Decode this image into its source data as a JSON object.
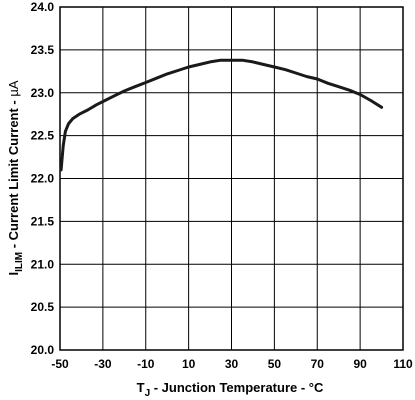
{
  "chart_data": {
    "type": "line",
    "title": "",
    "xlabel": {
      "main": "T",
      "sub": "J",
      "rest": " - Junction Temperature - °C"
    },
    "ylabel": {
      "main": "I",
      "sub": "ILIM",
      "rest": " - Current Limit Current - ",
      "unit": "µA"
    },
    "xlim": [
      -50,
      110
    ],
    "ylim": [
      20.0,
      24.0
    ],
    "xticks": [
      "-50",
      "-30",
      "-10",
      "10",
      "30",
      "50",
      "70",
      "90",
      "110"
    ],
    "yticks": [
      "20.0",
      "20.5",
      "21.0",
      "21.5",
      "22.0",
      "22.5",
      "23.0",
      "23.5",
      "24.0"
    ],
    "grid": true,
    "series": [
      {
        "x": [
          -49.5,
          -48.5,
          -47.5,
          -46,
          -44,
          -41,
          -37,
          -33,
          -29,
          -25,
          -20,
          -15,
          -10,
          -5,
          0,
          5,
          10,
          15,
          20,
          25,
          30,
          35,
          40,
          45,
          50,
          55,
          60,
          65,
          70,
          75,
          80,
          85,
          90,
          95,
          100
        ],
        "y": [
          22.1,
          22.38,
          22.55,
          22.64,
          22.7,
          22.75,
          22.8,
          22.86,
          22.91,
          22.96,
          23.02,
          23.07,
          23.12,
          23.17,
          23.22,
          23.26,
          23.3,
          23.33,
          23.36,
          23.38,
          23.38,
          23.38,
          23.36,
          23.33,
          23.3,
          23.27,
          23.23,
          23.19,
          23.16,
          23.11,
          23.07,
          23.03,
          22.98,
          22.91,
          22.83
        ]
      }
    ]
  }
}
